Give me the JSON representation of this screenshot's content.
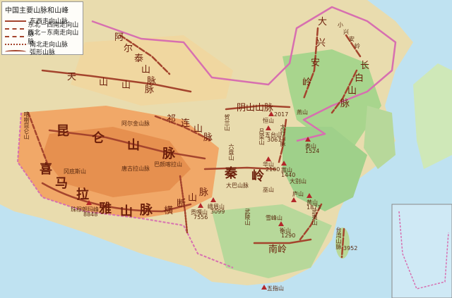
{
  "legend": {
    "title": "中国主要山脉和山峰",
    "items": [
      {
        "label": "东西走向山脉",
        "style": "solid"
      },
      {
        "label": "东北－西南走向山脉",
        "style": "dashdot"
      },
      {
        "label": "西北－东南走向山脉",
        "style": "dash"
      },
      {
        "label": "南北走向山脉",
        "style": "dotdash"
      },
      {
        "label": "弧形山脉",
        "style": "arc"
      }
    ]
  },
  "labels": {
    "altai": [
      "阿",
      "尔",
      "泰",
      "山",
      "脉"
    ],
    "tianshan": [
      "天",
      "山",
      "山",
      "脉"
    ],
    "kunlun": [
      "昆",
      "仑",
      "山",
      "脉"
    ],
    "himalaya": [
      "喜",
      "马",
      "拉",
      "雅",
      "山",
      "脉"
    ],
    "karakoram": "喀喇昆仑山",
    "altun": "阿尔金山脉",
    "qilian": [
      "祁",
      "连",
      "山",
      "脉"
    ],
    "tanggula": "唐古拉山脉",
    "bayankala": "巴颜喀拉山",
    "gangdise": "冈底斯山",
    "hengduan": [
      "横",
      "断",
      "山",
      "脉"
    ],
    "yinshan": "阴山山脉",
    "helan": "贺兰山",
    "liupan": "六盘山",
    "luliang": "吕梁山",
    "taihang": "太行山脉",
    "qinling": [
      "秦",
      "岭"
    ],
    "daba": "大巴山脉",
    "dabie": "大别山",
    "wushan": "巫山",
    "xuefeng": "雪峰山",
    "wuyi": "武夷山",
    "wuling": "武陵山",
    "nanling": "南岭",
    "dahinggan": [
      "大",
      "兴",
      "安",
      "岭"
    ],
    "xiaohinggan": [
      "小",
      "兴",
      "安",
      "岭"
    ],
    "changbai": [
      "长",
      "白",
      "山",
      "脉"
    ],
    "taiwan": "台湾山脉",
    "yanshan": "燕山",
    "hengshan_n": "恒山",
    "wutai": "五台山",
    "huashan": "华山",
    "taishan": "泰山",
    "songshan": "嵩山",
    "huangshan": "黄山",
    "hengshan_s": "衡山",
    "emei": "峨眉山",
    "gongga": "贡嘎山",
    "wuzhi": "五指山",
    "lushan": "庐山",
    "everest": "珠穆朗玛峰"
  },
  "elevations": {
    "everest": "8848",
    "gongga": "7556",
    "emei": "3099",
    "taishan": "1524",
    "hengshan_n": "2017",
    "wutai": "3061",
    "huashan": "2160",
    "songshan": "1440",
    "huangshan": "1873",
    "hengshan_s": "1290",
    "taiwan": "3952"
  },
  "colors": {
    "sea": "#bfe2f1",
    "lowland": "#9fd08a",
    "hill": "#eed7a3",
    "plateau": "#f2a866",
    "high": "#e48948",
    "mountain_line": "#a4442d",
    "border": "#d76fb0"
  }
}
